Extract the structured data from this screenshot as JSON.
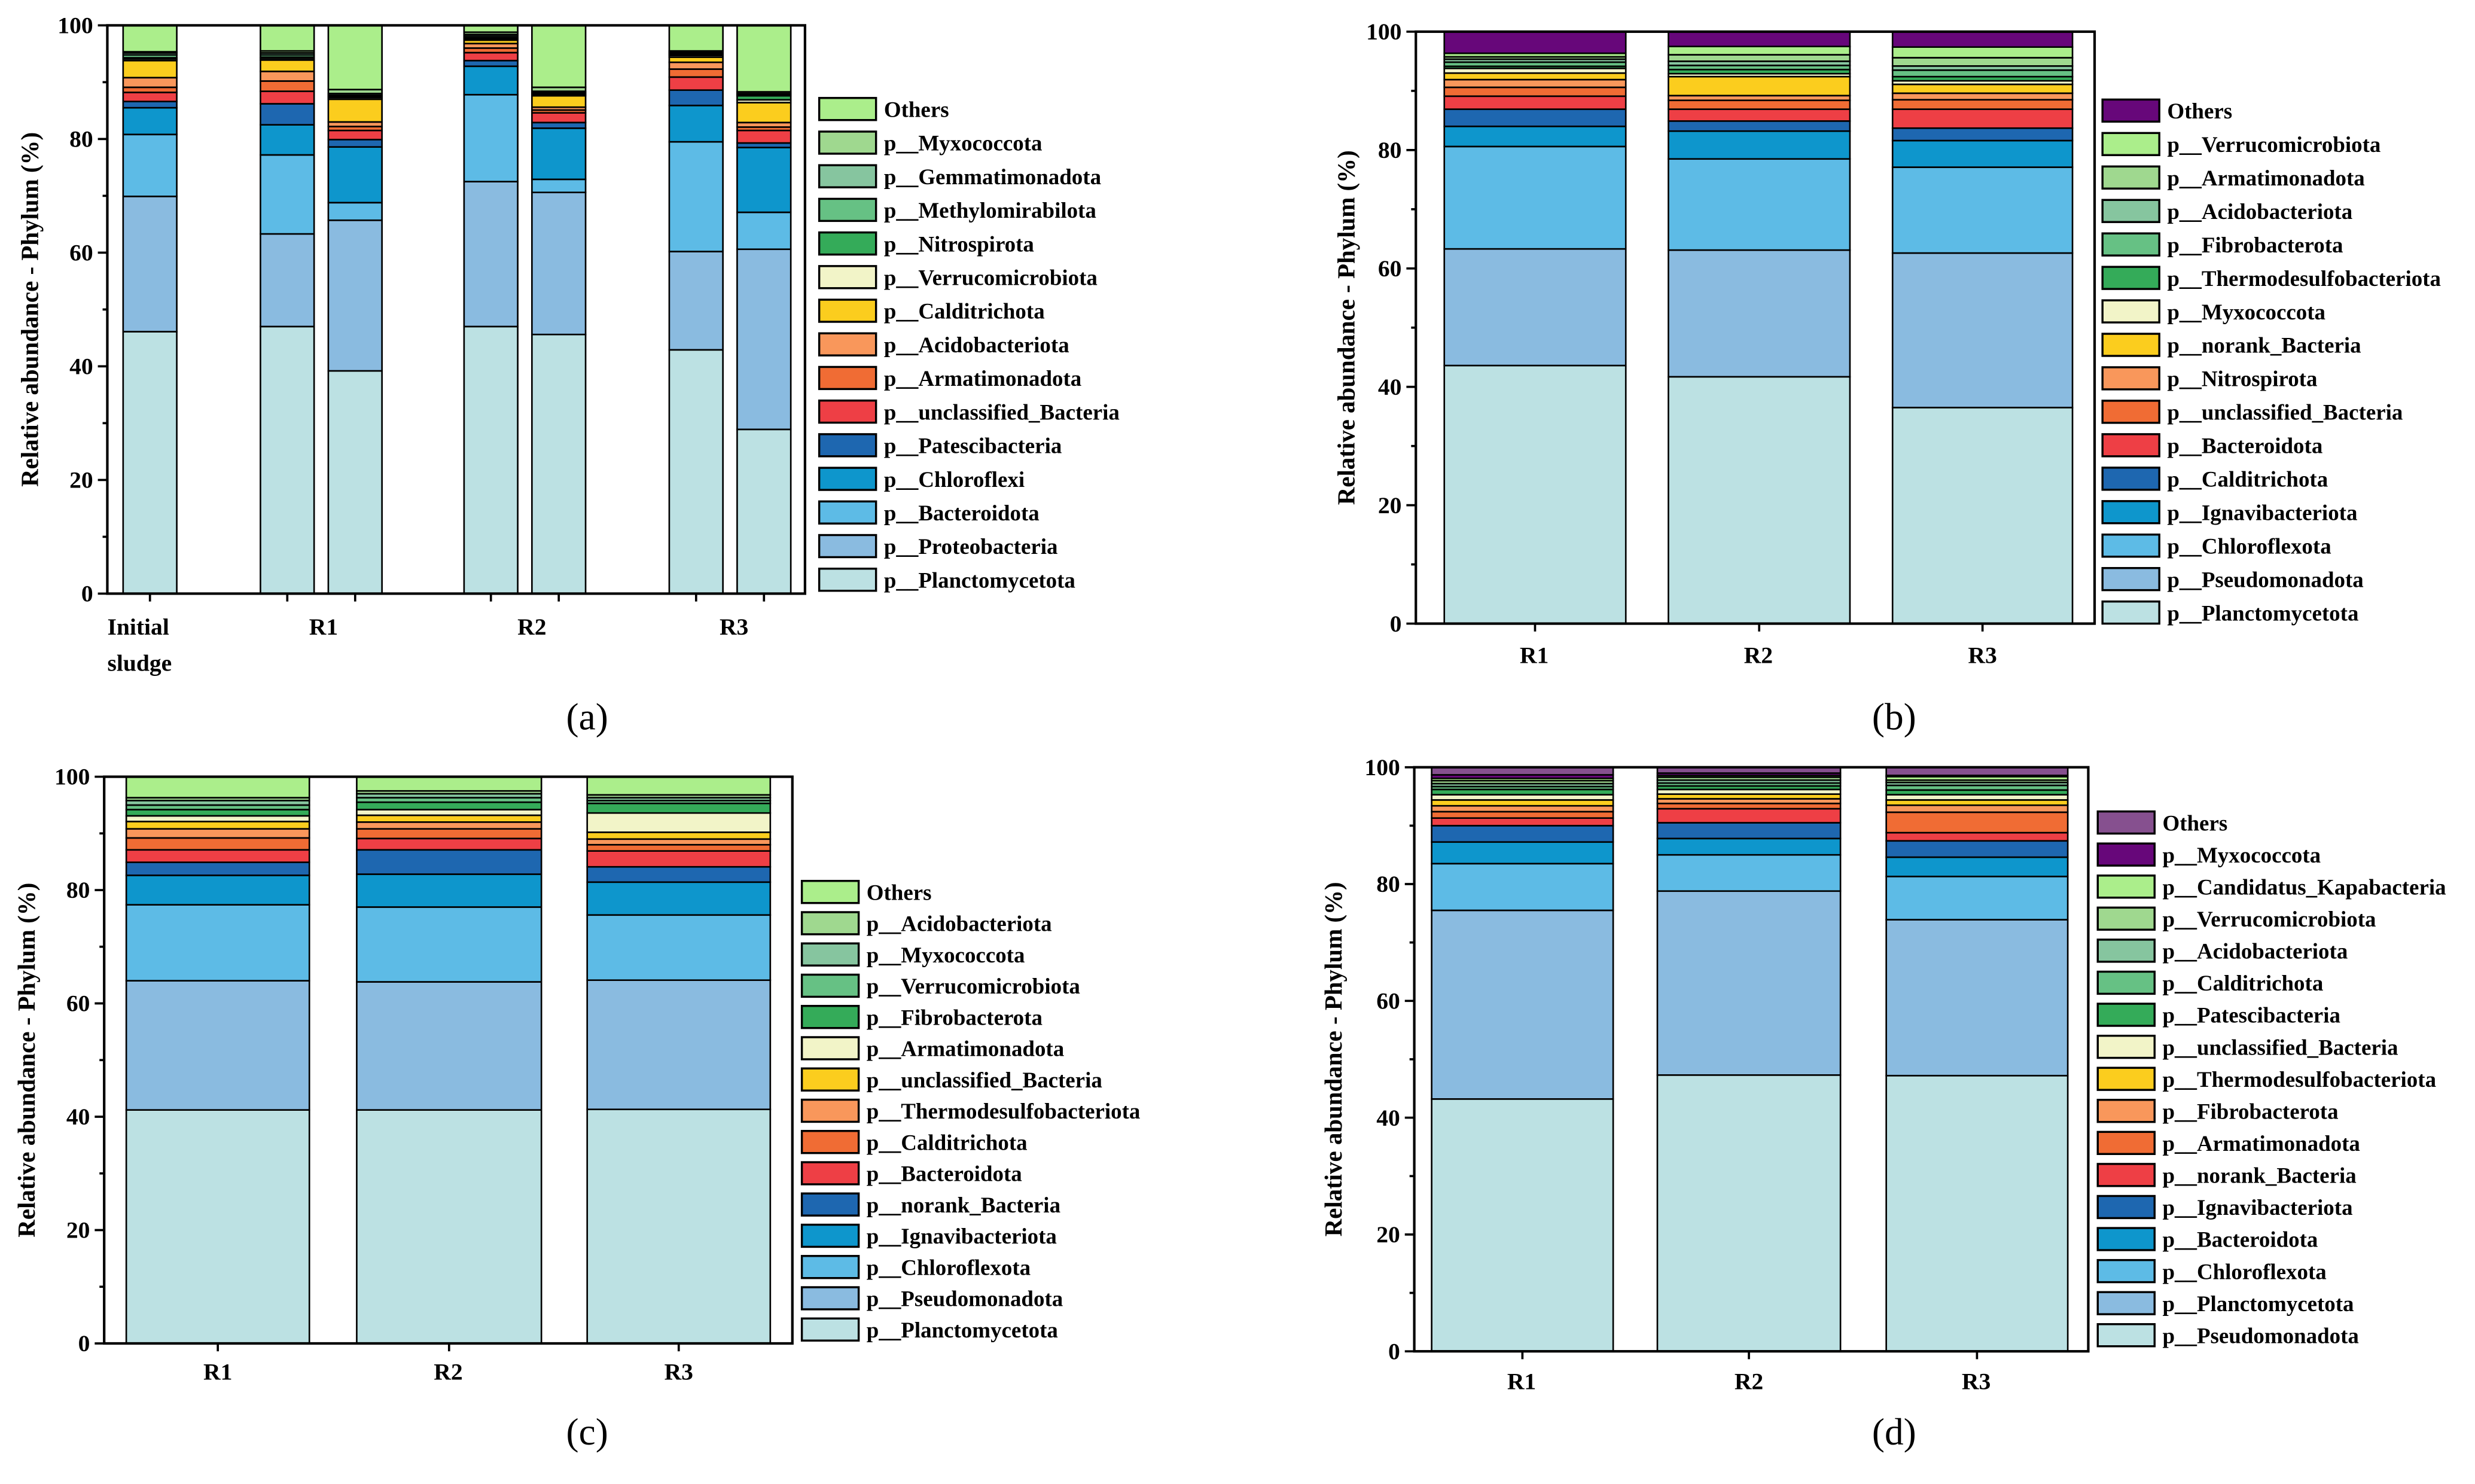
{
  "palette": [
    "#bce1e3",
    "#8abbe0",
    "#5dbbe6",
    "#0e96cc",
    "#1e67b0",
    "#ee3f45",
    "#f06c34",
    "#f9975b",
    "#fbcd1e",
    "#f2f4c8",
    "#34ab59",
    "#66c184",
    "#86c59f",
    "#9fd88f",
    "#abee8b",
    "#67077a",
    "#86508f"
  ],
  "chart_data": [
    {
      "panel": "(a)",
      "type": "bar",
      "stacked": true,
      "ylabel": "Relative abundance - Phylum (%)",
      "ylim": [
        0,
        100
      ],
      "yticks": [
        "0",
        "20",
        "40",
        "60",
        "80",
        "100"
      ],
      "categories": [
        "Initial sludge",
        "R1",
        "R1",
        "R2",
        "R2",
        "R3",
        "R3"
      ],
      "group_labels": [
        [
          "Initial",
          "sludge"
        ],
        [
          "R1"
        ],
        [
          "R2"
        ],
        [
          "R3"
        ]
      ],
      "series": [
        {
          "name": "p__Planctomycetota",
          "values": [
            46.1,
            47.0,
            39.2,
            47.0,
            45.6,
            42.9,
            28.9
          ]
        },
        {
          "name": "p__Proteobacteria",
          "values": [
            23.8,
            16.3,
            26.5,
            25.5,
            25.0,
            17.3,
            31.7
          ]
        },
        {
          "name": "p__Bacteroidota",
          "values": [
            10.9,
            13.9,
            3.1,
            15.3,
            2.3,
            19.3,
            6.5
          ]
        },
        {
          "name": "p__Chloroflexi",
          "values": [
            4.7,
            5.3,
            9.8,
            5.0,
            9.0,
            6.4,
            11.4
          ]
        },
        {
          "name": "p__Patescibacteria",
          "values": [
            1.1,
            3.7,
            1.3,
            1.0,
            1.0,
            2.7,
            0.8
          ]
        },
        {
          "name": "p__unclassified_Bacteria",
          "values": [
            1.6,
            2.2,
            1.6,
            1.4,
            1.7,
            2.3,
            2.2
          ]
        },
        {
          "name": "p__Armatimonadota",
          "values": [
            0.9,
            1.8,
            0.7,
            0.8,
            0.5,
            1.4,
            0.6
          ]
        },
        {
          "name": "p__Acidobacteriota",
          "values": [
            1.7,
            1.7,
            0.8,
            0.8,
            0.5,
            1.2,
            0.8
          ]
        },
        {
          "name": "p__Calditrichota",
          "values": [
            3.0,
            2.0,
            4.0,
            0.6,
            2.0,
            0.9,
            3.5
          ]
        },
        {
          "name": "p__Verrucomicrobiota",
          "values": [
            0.3,
            0.3,
            0.3,
            0.2,
            0.2,
            0.3,
            0.5
          ]
        },
        {
          "name": "p__Nitrospirota",
          "values": [
            0.2,
            0.2,
            0.2,
            0.2,
            0.2,
            0.2,
            0.7
          ]
        },
        {
          "name": "p__Methylomirabilota",
          "values": [
            0.5,
            0.4,
            0.2,
            0.3,
            0.2,
            0.2,
            0.2
          ]
        },
        {
          "name": "p__Gemmatimonadota",
          "values": [
            0.35,
            0.35,
            0.3,
            0.3,
            0.2,
            0.2,
            0.2
          ]
        },
        {
          "name": "p__Myxococcota",
          "values": [
            0.2,
            0.35,
            0.7,
            0.4,
            0.7,
            0.2,
            0.3
          ]
        },
        {
          "name": "Others",
          "values": [
            4.65,
            4.5,
            11.3,
            1.2,
            10.9,
            4.5,
            11.7
          ]
        }
      ]
    },
    {
      "panel": "(b)",
      "type": "bar",
      "stacked": true,
      "ylabel": "Relative abundance - Phylum (%)",
      "ylim": [
        0,
        100
      ],
      "yticks": [
        "0",
        "20",
        "40",
        "60",
        "80",
        "100"
      ],
      "categories": [
        "R1",
        "R2",
        "R3"
      ],
      "group_labels": [
        [
          "R1"
        ],
        [
          "R2"
        ],
        [
          "R3"
        ]
      ],
      "series": [
        {
          "name": "p__Planctomycetota",
          "values": [
            43.6,
            41.7,
            36.5
          ]
        },
        {
          "name": "p__Pseudomonadota",
          "values": [
            19.7,
            21.4,
            26.1
          ]
        },
        {
          "name": "p__Chloroflexota",
          "values": [
            17.3,
            15.4,
            14.5
          ]
        },
        {
          "name": "p__Ignavibacteriota",
          "values": [
            3.4,
            4.7,
            4.5
          ]
        },
        {
          "name": "p__Calditrichota",
          "values": [
            2.9,
            1.7,
            2.1
          ]
        },
        {
          "name": "p__Bacteroidota",
          "values": [
            2.2,
            2.0,
            3.2
          ]
        },
        {
          "name": "p__unclassified_Bacteria",
          "values": [
            1.5,
            1.5,
            1.6
          ]
        },
        {
          "name": "p__Nitrospirota",
          "values": [
            1.3,
            0.8,
            1.1
          ]
        },
        {
          "name": "p__norank_Bacteria",
          "values": [
            1.1,
            3.2,
            1.5
          ]
        },
        {
          "name": "p__Myxococcota",
          "values": [
            0.8,
            0.5,
            0.6
          ]
        },
        {
          "name": "p__Thermodesulfobacteriota",
          "values": [
            0.35,
            0.7,
            0.7
          ]
        },
        {
          "name": "p__Fibrobacterota",
          "values": [
            0.7,
            0.7,
            1.1
          ]
        },
        {
          "name": "p__Acidobacteriota",
          "values": [
            0.5,
            0.7,
            0.7
          ]
        },
        {
          "name": "p__Armatimonadota",
          "values": [
            0.4,
            1.1,
            1.4
          ]
        },
        {
          "name": "p__Verrucomicrobiota",
          "values": [
            0.6,
            1.4,
            1.8
          ]
        },
        {
          "name": "Others",
          "values": [
            3.65,
            2.5,
            2.6
          ]
        }
      ]
    },
    {
      "panel": "(c)",
      "type": "bar",
      "stacked": true,
      "ylabel": "Relative abundance - Phylum (%)",
      "ylim": [
        0,
        100
      ],
      "yticks": [
        "0",
        "20",
        "40",
        "60",
        "80",
        "100"
      ],
      "categories": [
        "R1",
        "R2",
        "R3"
      ],
      "group_labels": [
        [
          "R1"
        ],
        [
          "R2"
        ],
        [
          "R3"
        ]
      ],
      "series": [
        {
          "name": "p__Planctomycetota",
          "values": [
            41.2,
            41.2,
            41.3
          ]
        },
        {
          "name": "p__Pseudomonadota",
          "values": [
            22.8,
            22.6,
            22.8
          ]
        },
        {
          "name": "p__Chloroflexota",
          "values": [
            13.4,
            13.2,
            11.5
          ]
        },
        {
          "name": "p__Ignavibacteriota",
          "values": [
            5.2,
            5.8,
            5.8
          ]
        },
        {
          "name": "p__norank_Bacteria",
          "values": [
            2.3,
            4.3,
            2.7
          ]
        },
        {
          "name": "p__Bacteroidota",
          "values": [
            2.2,
            2.0,
            2.8
          ]
        },
        {
          "name": "p__Calditrichota",
          "values": [
            2.1,
            1.7,
            1.1
          ]
        },
        {
          "name": "p__Thermodesulfobacteriota",
          "values": [
            1.6,
            1.2,
            1.0
          ]
        },
        {
          "name": "p__unclassified_Bacteria",
          "values": [
            1.3,
            1.2,
            1.2
          ]
        },
        {
          "name": "p__Armatimonadota",
          "values": [
            1.0,
            1.0,
            3.4
          ]
        },
        {
          "name": "p__Fibrobacterota",
          "values": [
            1.1,
            1.3,
            1.7
          ]
        },
        {
          "name": "p__Verrucomicrobiota",
          "values": [
            0.8,
            0.8,
            0.5
          ]
        },
        {
          "name": "p__Myxococcota",
          "values": [
            0.8,
            0.7,
            0.5
          ]
        },
        {
          "name": "p__Acidobacteriota",
          "values": [
            0.5,
            0.5,
            0.5
          ]
        },
        {
          "name": "Others",
          "values": [
            3.7,
            2.5,
            3.2
          ]
        }
      ]
    },
    {
      "panel": "(d)",
      "type": "bar",
      "stacked": true,
      "ylabel": "Relative abundance - Phylum (%)",
      "ylim": [
        0,
        100
      ],
      "yticks": [
        "0",
        "20",
        "40",
        "60",
        "80",
        "100"
      ],
      "categories": [
        "R1",
        "R2",
        "R3"
      ],
      "group_labels": [
        [
          "R1"
        ],
        [
          "R2"
        ],
        [
          "R3"
        ]
      ],
      "series": [
        {
          "name": "p__Pseudomonadota",
          "values": [
            43.2,
            47.3,
            47.2
          ]
        },
        {
          "name": "p__Planctomycetota",
          "values": [
            32.3,
            31.5,
            26.7
          ]
        },
        {
          "name": "p__Chloroflexota",
          "values": [
            8.0,
            6.2,
            7.4
          ]
        },
        {
          "name": "p__Bacteroidota",
          "values": [
            3.7,
            2.8,
            3.3
          ]
        },
        {
          "name": "p__Ignavibacteriota",
          "values": [
            2.8,
            2.7,
            2.8
          ]
        },
        {
          "name": "p__norank_Bacteria",
          "values": [
            1.3,
            2.4,
            1.4
          ]
        },
        {
          "name": "p__Armatimonadota",
          "values": [
            1.1,
            0.9,
            3.5
          ]
        },
        {
          "name": "p__Fibrobacterota",
          "values": [
            1.0,
            0.8,
            1.2
          ]
        },
        {
          "name": "p__Thermodesulfobacteriota",
          "values": [
            1.0,
            0.8,
            0.9
          ]
        },
        {
          "name": "p__unclassified_Bacteria",
          "values": [
            0.9,
            0.8,
            0.9
          ]
        },
        {
          "name": "p__Patescibacteria",
          "values": [
            0.9,
            0.6,
            0.8
          ]
        },
        {
          "name": "p__Calditrichota",
          "values": [
            0.5,
            0.5,
            0.8
          ]
        },
        {
          "name": "p__Acidobacteriota",
          "values": [
            0.5,
            0.5,
            0.5
          ]
        },
        {
          "name": "p__Verrucomicrobiota",
          "values": [
            0.5,
            0.5,
            0.4
          ]
        },
        {
          "name": "p__Candidatus_Kapabacteria",
          "values": [
            0.4,
            0.3,
            0.6
          ]
        },
        {
          "name": "p__Myxococcota",
          "values": [
            0.6,
            0.4,
            0.2
          ]
        },
        {
          "name": "Others",
          "values": [
            1.3,
            1.0,
            1.4
          ]
        }
      ]
    }
  ]
}
